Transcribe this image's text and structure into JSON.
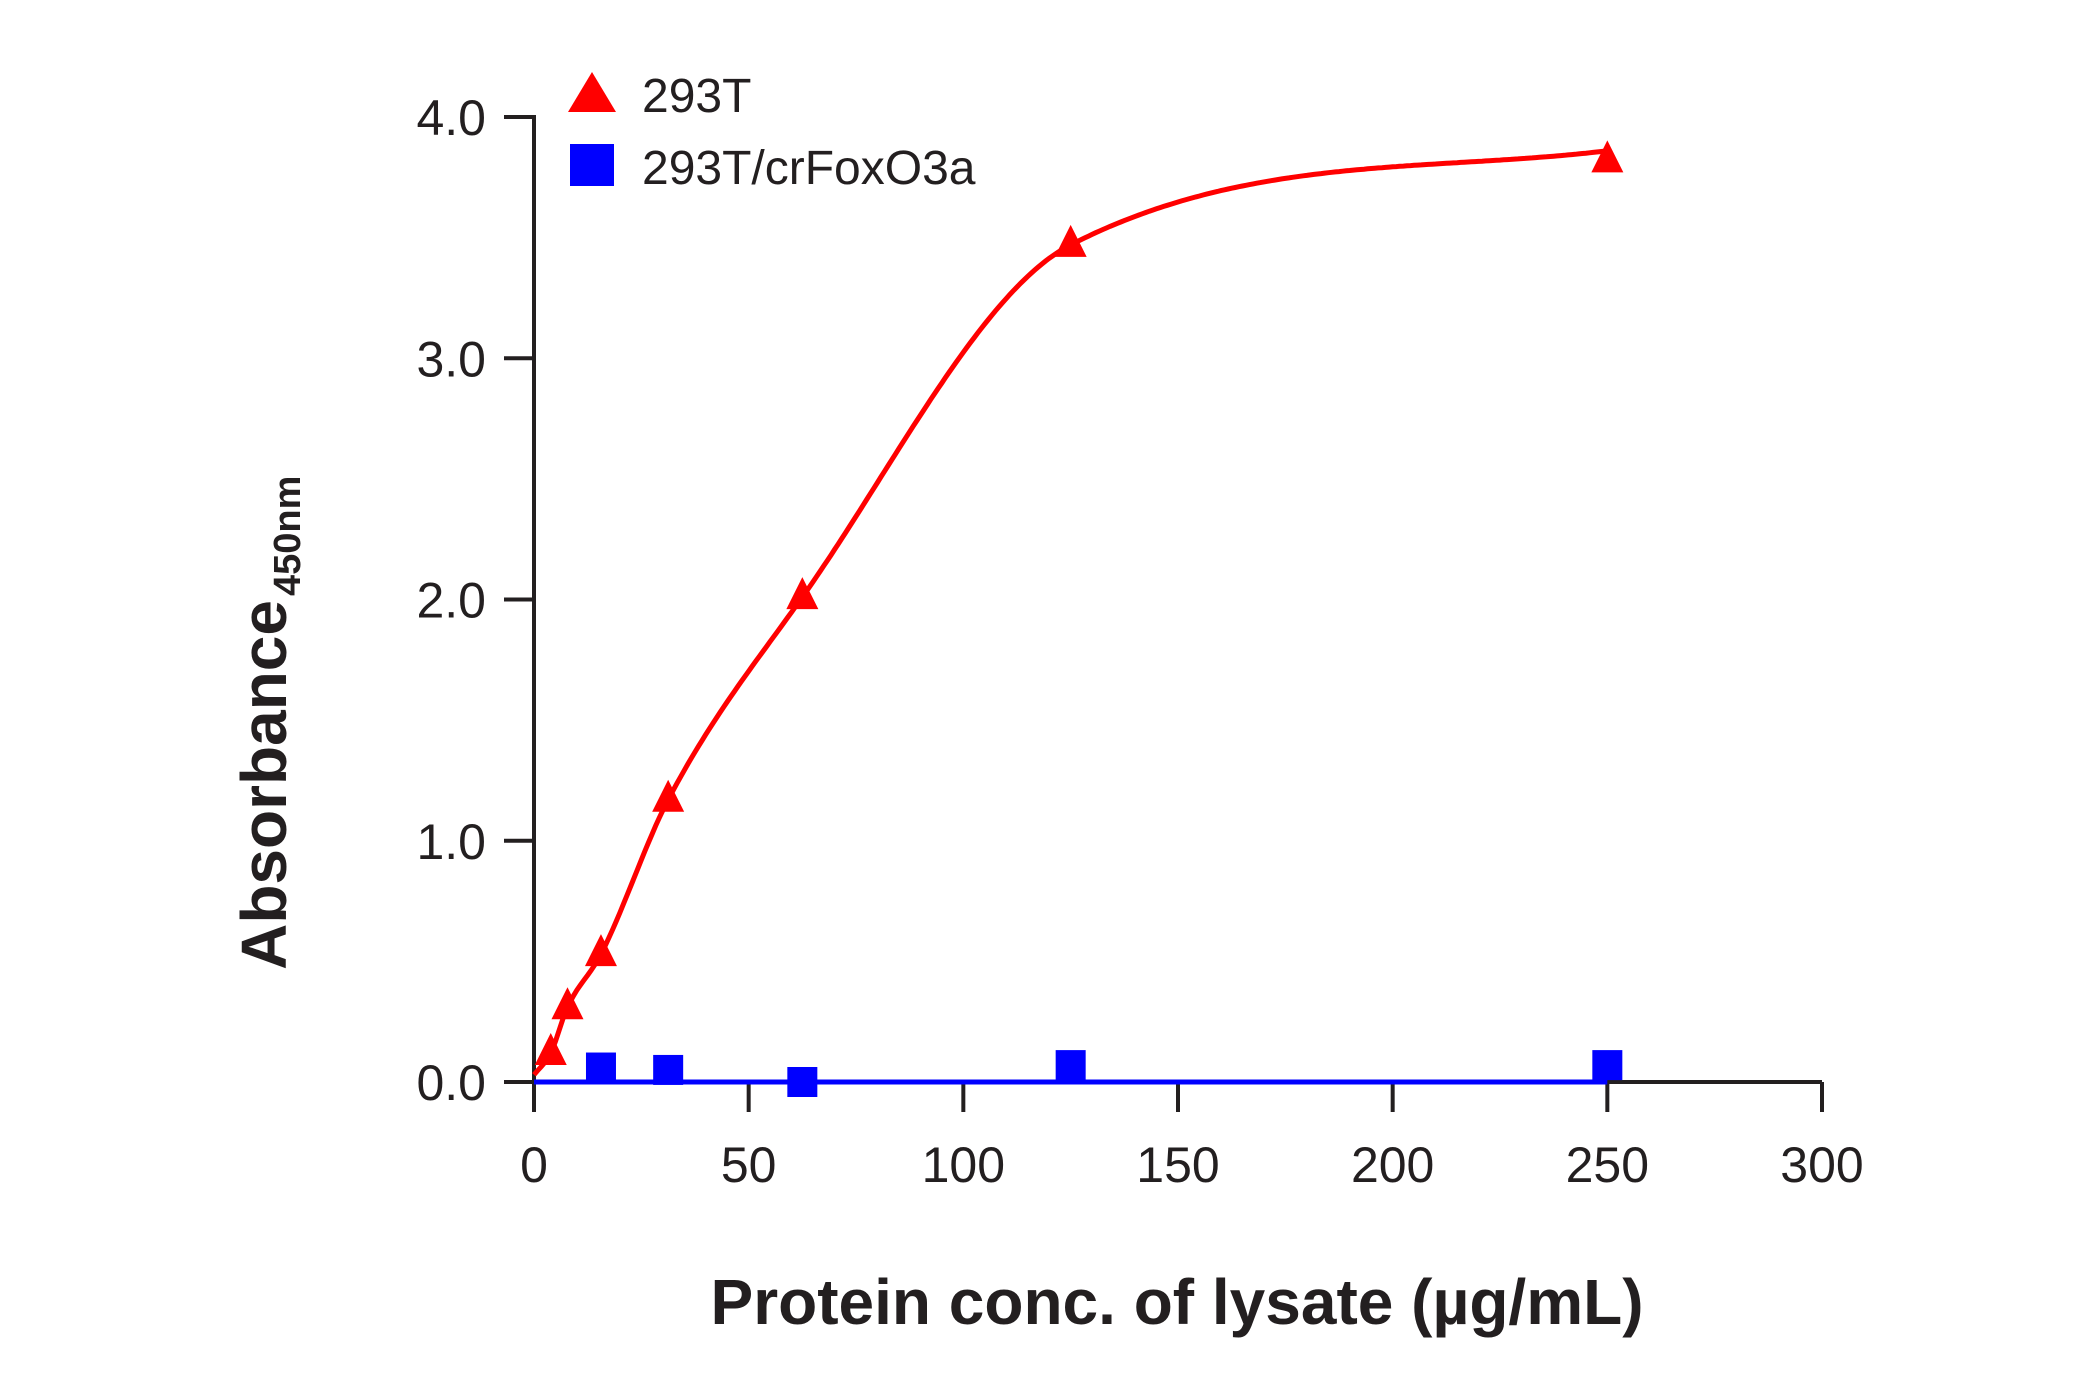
{
  "chart_data": {
    "type": "scatter",
    "xlabel": "Protein conc. of lysate (µg/mL)",
    "ylabel_main": "Absorbance",
    "ylabel_sub": "450nm",
    "xlim": [
      0,
      300
    ],
    "ylim": [
      0,
      4.0
    ],
    "xticks": [
      "0",
      "50",
      "100",
      "150",
      "200",
      "250",
      "300"
    ],
    "yticks": [
      "0.0",
      "1.0",
      "2.0",
      "3.0",
      "4.0"
    ],
    "grid": false,
    "legend_position": "top-left",
    "series": [
      {
        "name": "293T",
        "marker": "triangle",
        "color": "#ff0000",
        "fit_line": true,
        "x": [
          3.9,
          7.8,
          15.6,
          31.25,
          62.5,
          125,
          250
        ],
        "y": [
          0.12,
          0.31,
          0.53,
          1.17,
          2.01,
          3.47,
          3.82
        ]
      },
      {
        "name": "293T/crFoxO3a",
        "marker": "square",
        "color": "#0000ff",
        "fit_line": true,
        "x": [
          15.6,
          31.25,
          62.5,
          125,
          250
        ],
        "y": [
          0.06,
          0.05,
          0.0,
          0.07,
          0.07
        ]
      }
    ]
  }
}
